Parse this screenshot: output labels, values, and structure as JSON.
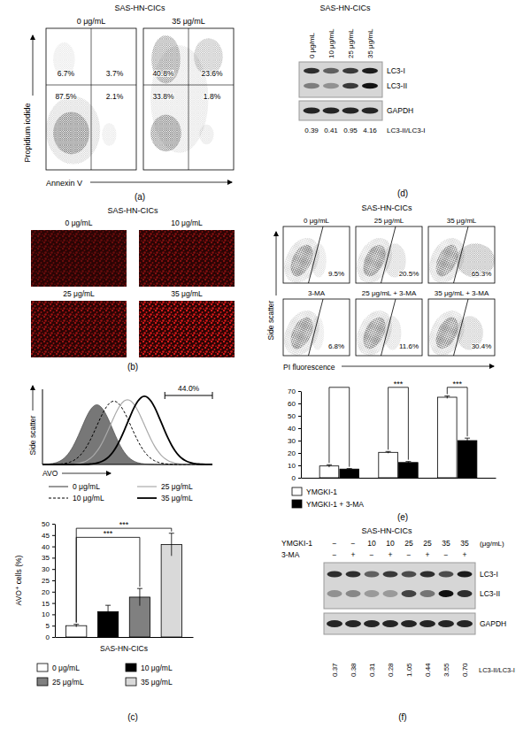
{
  "chart_data": [
    {
      "type": "bar",
      "y_label": "AVO⁺ cells (%)",
      "x_label": "SAS-HN-CICs",
      "categories": [
        "0 μg/mL",
        "10 μg/mL",
        "25 μg/mL",
        "35 μg/mL"
      ],
      "values": [
        5,
        11.2,
        17.6,
        40.8
      ],
      "errors": [
        0.6,
        2.8,
        3.8,
        5
      ],
      "colors": [
        "#ffffff",
        "#000000",
        "#808080",
        "#d9d9d9"
      ],
      "ylim": [
        0,
        50
      ],
      "yticks": [
        0,
        5,
        10,
        15,
        20,
        25,
        30,
        35,
        40,
        45,
        50
      ],
      "tick_labels": "y",
      "legend": "bottom",
      "annotations": [
        {
          "text": "***",
          "from": 0,
          "to": 2,
          "y": 44
        },
        {
          "text": "***",
          "from": 0,
          "to": 3,
          "y": 48
        }
      ]
    },
    {
      "type": "bar",
      "categories": [
        null,
        null,
        null
      ],
      "series": [
        {
          "name": "YMGKI-1",
          "color": "#ffffff",
          "values": [
            9.5,
            20.5,
            65
          ],
          "errors": [
            1,
            0.7,
            1
          ]
        },
        {
          "name": "YMGKI-1 + 3-MA",
          "color": "#000000",
          "values": [
            7,
            12.3,
            30
          ],
          "errors": [
            0.4,
            0.8,
            2
          ]
        }
      ],
      "ylim": [
        0,
        70
      ],
      "yticks": [
        0,
        10,
        20,
        30,
        40,
        50,
        60,
        70
      ],
      "tick_labels": "y",
      "legend": "bottom",
      "annotations": [
        {
          "category": 0,
          "y": 73
        },
        {
          "category": 1,
          "y": 73,
          "text": "***"
        },
        {
          "category": 2,
          "y": 73,
          "text": "***"
        }
      ]
    }
  ],
  "panel_a": {
    "label": "(a)",
    "title": "SAS-HN-CICs",
    "y_label": "Propidium iodide",
    "x_label": "Annexin V",
    "plots": [
      {
        "title": "0 μg/mL",
        "upper_left": "6.7%",
        "upper_right": "3.7%",
        "lower_left": "87.5%",
        "lower_right": "2.1%"
      },
      {
        "title": "35 μg/mL",
        "upper_left": "40.8%",
        "upper_right": "23.6%",
        "lower_left": "33.8%",
        "lower_right": "1.8%"
      }
    ]
  },
  "panel_b": {
    "label": "(b)",
    "title": "SAS-HN-CICs",
    "images": [
      "0 μg/mL",
      "10 μg/mL",
      "25 μg/mL",
      "35 μg/mL"
    ]
  },
  "panel_c": {
    "label": "(c)",
    "y_label": "Side scatter",
    "x_label": "AVO",
    "gate": "44.0%",
    "legend": [
      "0 μg/mL",
      "10 μg/mL",
      "25 μg/mL",
      "35 μg/mL"
    ]
  },
  "panel_d": {
    "label": "(d)",
    "title": "SAS-HN-CICs",
    "lanes": [
      "0 μg/mL",
      "10 μg/mL",
      "25 μg/mL",
      "35 μg/mL"
    ],
    "bands": [
      "LC3-I",
      "LC3-II",
      "GAPDH"
    ],
    "ratio_label": "LC3-II/LC3-I",
    "ratios": [
      "0.39",
      "0.41",
      "0.95",
      "4.16"
    ]
  },
  "panel_e": {
    "label": "(e)",
    "title": "SAS-HN-CICs",
    "y_label": "Side scatter",
    "x_label": "PI fluorescence",
    "plots": [
      {
        "title": "0 μg/mL",
        "gate": "9.5%"
      },
      {
        "title": "25 μg/mL",
        "gate": "20.5%"
      },
      {
        "title": "35 μg/mL",
        "gate": "65.3%"
      },
      {
        "title": "3-MA",
        "gate": "6.8%"
      },
      {
        "title": "25 μg/mL + 3-MA",
        "gate": "11.6%"
      },
      {
        "title": "35 μg/mL + 3-MA",
        "gate": "30.4%"
      }
    ]
  },
  "panel_f": {
    "label": "(f)",
    "title": "SAS-HN-CICs",
    "rows": [
      {
        "name": "YMGKI-1",
        "values": [
          "−",
          "−",
          "10",
          "10",
          "25",
          "25",
          "35",
          "35"
        ],
        "unit": "(μg/mL)"
      },
      {
        "name": "3-MA",
        "values": [
          "−",
          "+",
          "−",
          "+",
          "−",
          "+",
          "−",
          "+"
        ]
      }
    ],
    "bands": [
      "LC3-I",
      "LC3-II",
      "GAPDH"
    ],
    "ratio_label": "LC3-II/LC3-I",
    "ratios": [
      "0.37",
      "0.38",
      "0.31",
      "0.28",
      "1.05",
      "0.44",
      "3.55",
      "0.70"
    ]
  }
}
